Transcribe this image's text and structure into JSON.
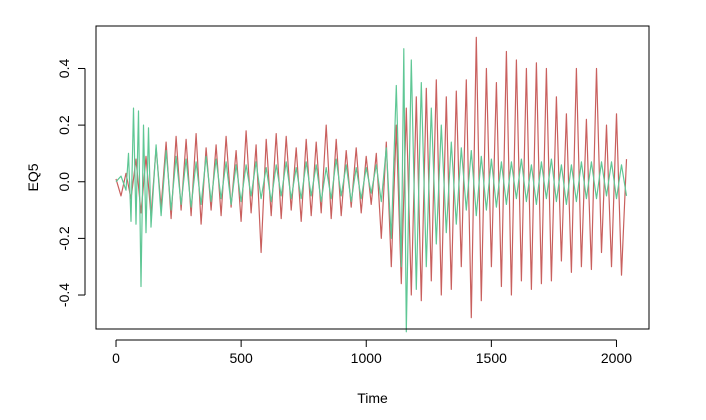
{
  "chart_data": {
    "type": "line",
    "title": "",
    "xlabel": "Time",
    "ylabel": "EQ5",
    "xlim": [
      -80,
      2130
    ],
    "ylim": [
      -0.52,
      0.55
    ],
    "x_ticks": [
      0,
      500,
      1000,
      1500,
      2000
    ],
    "x_tick_labels": [
      "0",
      "500",
      "1000",
      "1500",
      "2000"
    ],
    "y_ticks": [
      -0.4,
      -0.2,
      0.0,
      0.2,
      0.4
    ],
    "y_tick_labels": [
      "-0.4",
      "-0.2",
      "0.0",
      "0.2",
      "0.4"
    ],
    "grid": false,
    "legend": "none",
    "series": [
      {
        "color": "#c9605e",
        "x": [
          0,
          20,
          40,
          60,
          80,
          100,
          120,
          140,
          160,
          180,
          200,
          220,
          240,
          260,
          280,
          300,
          320,
          340,
          360,
          380,
          400,
          420,
          440,
          460,
          480,
          500,
          520,
          540,
          560,
          580,
          600,
          620,
          640,
          660,
          680,
          700,
          720,
          740,
          760,
          780,
          800,
          820,
          840,
          860,
          880,
          900,
          920,
          940,
          960,
          980,
          1000,
          1020,
          1040,
          1060,
          1080,
          1100,
          1120,
          1140,
          1160,
          1180,
          1200,
          1220,
          1240,
          1260,
          1280,
          1300,
          1320,
          1340,
          1360,
          1380,
          1400,
          1420,
          1440,
          1460,
          1480,
          1500,
          1520,
          1540,
          1560,
          1580,
          1600,
          1620,
          1640,
          1660,
          1680,
          1700,
          1720,
          1740,
          1760,
          1780,
          1800,
          1820,
          1840,
          1860,
          1880,
          1900,
          1920,
          1940,
          1960,
          1980,
          2000,
          2020,
          2040
        ],
        "y": [
          0.01,
          -0.05,
          0.03,
          -0.06,
          0.08,
          -0.11,
          0.09,
          -0.12,
          0.12,
          -0.09,
          0.14,
          -0.13,
          0.16,
          -0.1,
          0.15,
          -0.12,
          0.17,
          -0.15,
          0.12,
          -0.1,
          0.13,
          -0.12,
          0.16,
          -0.09,
          0.11,
          -0.14,
          0.18,
          -0.11,
          0.13,
          -0.25,
          0.15,
          -0.12,
          0.17,
          -0.13,
          0.16,
          -0.1,
          0.12,
          -0.14,
          0.15,
          -0.12,
          0.14,
          -0.11,
          0.2,
          -0.13,
          0.15,
          -0.12,
          0.11,
          -0.09,
          0.12,
          -0.11,
          0.09,
          -0.08,
          0.1,
          -0.2,
          0.14,
          -0.3,
          0.2,
          -0.36,
          0.26,
          -0.4,
          0.3,
          -0.42,
          0.33,
          -0.35,
          0.36,
          -0.4,
          0.3,
          -0.38,
          0.32,
          -0.3,
          0.36,
          -0.48,
          0.51,
          -0.42,
          0.4,
          -0.3,
          0.35,
          -0.37,
          0.46,
          -0.4,
          0.43,
          -0.35,
          0.4,
          -0.38,
          0.42,
          -0.36,
          0.4,
          -0.35,
          0.3,
          -0.28,
          0.24,
          -0.32,
          0.4,
          -0.3,
          0.22,
          -0.31,
          0.4,
          -0.25,
          0.2,
          -0.3,
          0.24,
          -0.33,
          0.08
        ]
      },
      {
        "color": "#5fc795",
        "x": [
          0,
          20,
          40,
          50,
          60,
          70,
          80,
          90,
          100,
          110,
          120,
          130,
          140,
          160,
          180,
          200,
          220,
          240,
          260,
          280,
          300,
          320,
          340,
          360,
          380,
          400,
          420,
          440,
          460,
          480,
          500,
          520,
          540,
          560,
          580,
          600,
          620,
          640,
          660,
          680,
          700,
          720,
          740,
          760,
          780,
          800,
          820,
          840,
          860,
          880,
          900,
          920,
          940,
          960,
          980,
          1000,
          1020,
          1040,
          1060,
          1080,
          1100,
          1120,
          1140,
          1150,
          1160,
          1180,
          1200,
          1220,
          1240,
          1260,
          1280,
          1300,
          1320,
          1340,
          1360,
          1380,
          1400,
          1420,
          1440,
          1460,
          1480,
          1500,
          1520,
          1540,
          1560,
          1580,
          1600,
          1620,
          1640,
          1660,
          1680,
          1700,
          1720,
          1740,
          1760,
          1780,
          1800,
          1820,
          1840,
          1860,
          1880,
          1900,
          1920,
          1940,
          1960,
          1980,
          2000,
          2020,
          2040
        ],
        "y": [
          0.0,
          0.02,
          -0.03,
          0.1,
          -0.14,
          0.26,
          -0.15,
          0.25,
          -0.37,
          0.2,
          -0.18,
          0.19,
          -0.16,
          0.13,
          -0.12,
          0.11,
          -0.1,
          0.09,
          -0.08,
          0.08,
          -0.09,
          0.07,
          -0.08,
          0.09,
          -0.07,
          0.08,
          -0.06,
          0.07,
          -0.08,
          0.06,
          -0.07,
          0.06,
          -0.05,
          0.07,
          -0.06,
          0.05,
          -0.07,
          0.06,
          -0.05,
          0.07,
          -0.06,
          0.05,
          -0.06,
          0.07,
          -0.05,
          0.06,
          -0.07,
          0.05,
          -0.06,
          0.08,
          -0.05,
          0.06,
          -0.07,
          0.05,
          -0.06,
          0.05,
          -0.04,
          0.06,
          -0.07,
          0.12,
          -0.2,
          0.34,
          -0.3,
          0.47,
          -0.53,
          0.43,
          -0.38,
          0.35,
          -0.3,
          0.26,
          -0.22,
          0.2,
          -0.18,
          0.14,
          -0.15,
          0.12,
          -0.1,
          0.11,
          -0.12,
          0.09,
          -0.1,
          0.08,
          -0.09,
          0.07,
          -0.08,
          0.07,
          -0.06,
          0.08,
          -0.07,
          0.06,
          -0.08,
          0.07,
          -0.06,
          0.08,
          -0.07,
          0.06,
          -0.08,
          0.06,
          -0.07,
          0.07,
          -0.06,
          0.07,
          -0.06,
          0.07,
          -0.05,
          0.07,
          -0.06,
          0.06,
          -0.05
        ]
      }
    ]
  }
}
